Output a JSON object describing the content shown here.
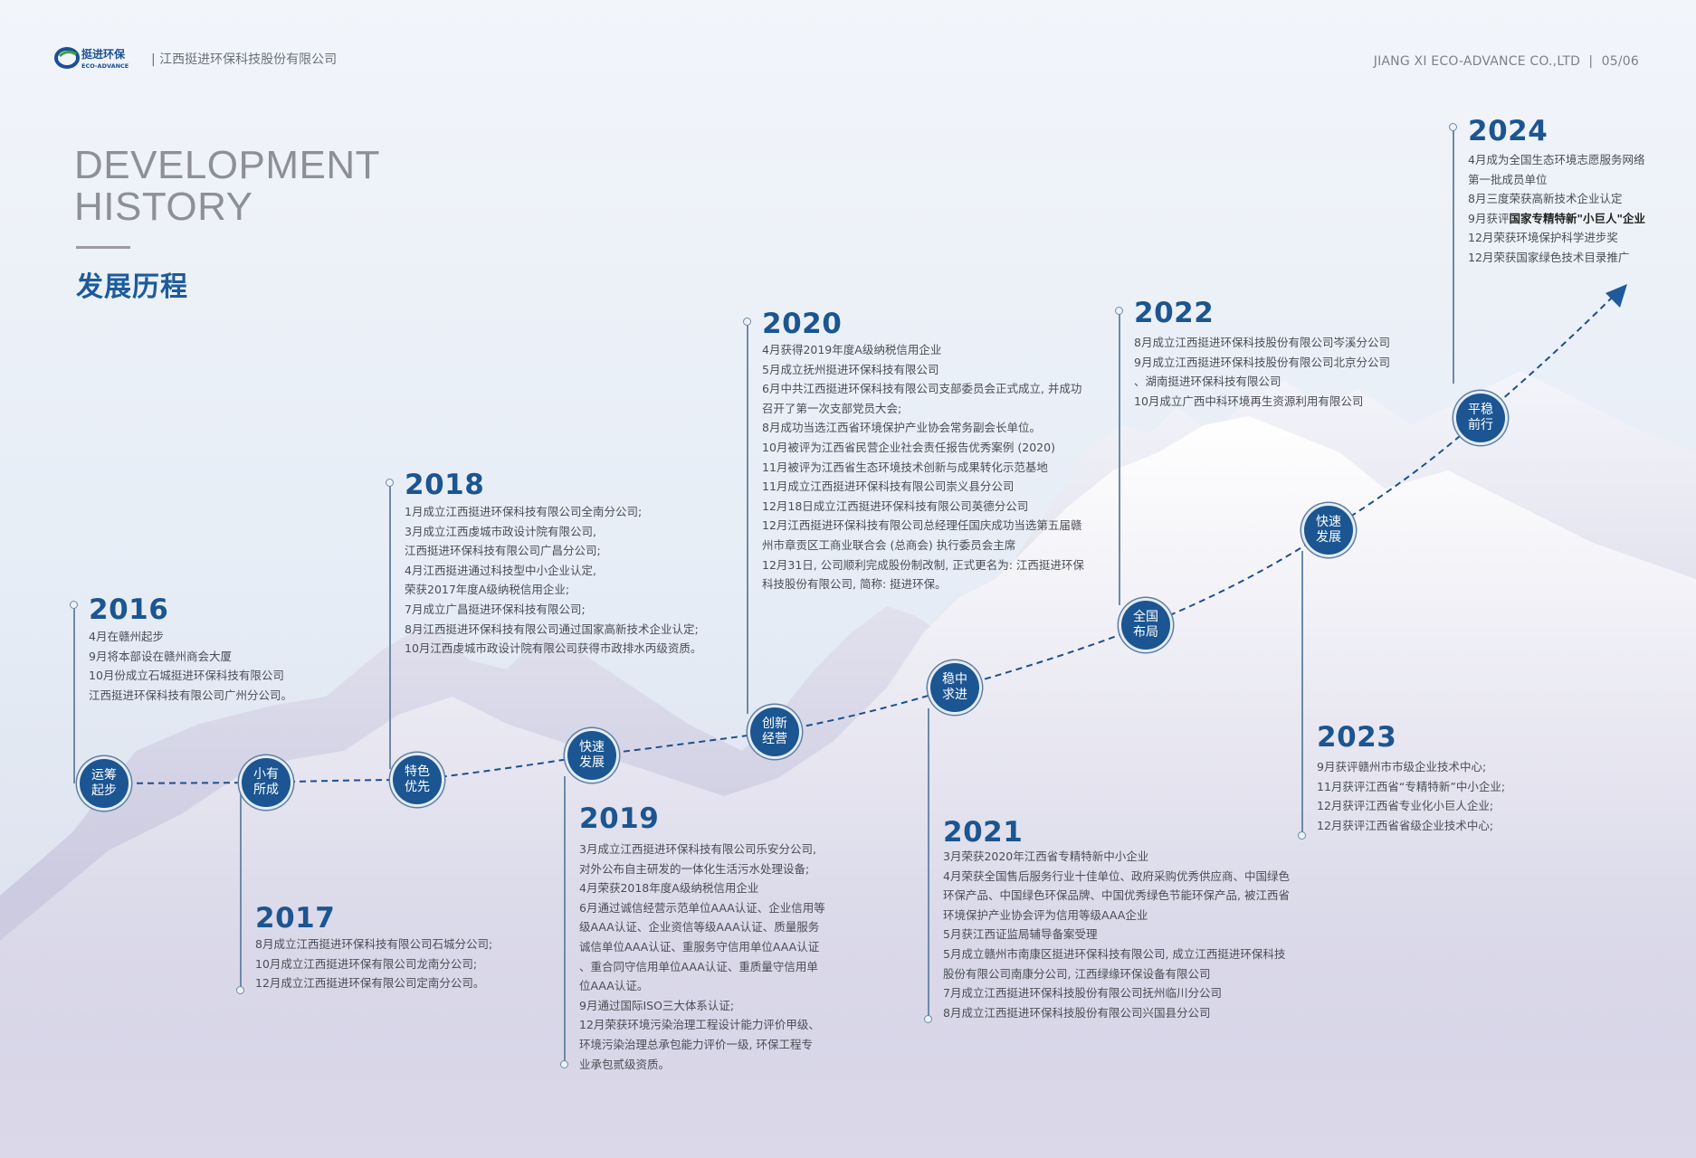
{
  "header": {
    "logo_text": "挺进环保",
    "logo_sub": "ECO-ADVANCE",
    "company_name": "| 江西挺进环保科技股份有限公司",
    "right_text": "JIANG XI ECO-ADVANCE CO.,LTD  |  05/06"
  },
  "title": {
    "en_line1": "DEVELOPMENT",
    "en_line2": "HISTORY",
    "cn": "发展历程"
  },
  "colors": {
    "accent": "#1b5592",
    "year": "#1c5590",
    "line": "#6d8aa8"
  },
  "stages": [
    "运筹起步",
    "小有所成",
    "特色优先",
    "快速发展",
    "创新经营",
    "稳中求进",
    "全国布局",
    "快速发展",
    "平稳前行"
  ],
  "timeline": [
    {
      "year": "2016",
      "lines": [
        "4月在赣州起步",
        "9月将本部设在赣州商会大厦",
        "10月份成立石城挺进环保科技有限公司",
        "江西挺进环保科技有限公司广州分公司。"
      ]
    },
    {
      "year": "2017",
      "lines": [
        "8月成立江西挺进环保科技有限公司石城分公司;",
        "10月成立江西挺进环保有限公司龙南分公司;",
        "12月成立江西挺进环保有限公司定南分公司。"
      ]
    },
    {
      "year": "2018",
      "lines": [
        "1月成立江西挺进环保科技有限公司全南分公司;",
        "3月成立江西虔城市政设计院有限公司,",
        "江西挺进环保科技有限公司广昌分公司;",
        "4月江西挺进通过科技型中小企业认定,",
        "荣获2017年度A级纳税信用企业;",
        "7月成立广昌挺进环保科技有限公司;",
        "8月江西挺进环保科技有限公司通过国家高新技术企业认定;",
        "10月江西虔城市政设计院有限公司获得市政排水丙级资质。"
      ]
    },
    {
      "year": "2019",
      "lines": [
        "3月成立江西挺进环保科技有限公司乐安分公司,",
        "对外公布自主研发的一体化生活污水处理设备;",
        "4月荣获2018年度A级纳税信用企业",
        "6月通过诚信经营示范单位AAA认证、企业信用等",
        "级AAA认证、企业资信等级AAA认证、质量服务",
        "诚信单位AAA认证、重服务守信用单位AAA认证",
        "、重合同守信用单位AAA认证、重质量守信用单",
        "位AAA认证。",
        "9月通过国际ISO三大体系认证;",
        "12月荣获环境污染治理工程设计能力评价甲级、",
        "环境污染治理总承包能力评价一级, 环保工程专",
        "业承包贰级资质。"
      ]
    },
    {
      "year": "2020",
      "lines": [
        "4月获得2019年度A级纳税信用企业",
        "5月成立抚州挺进环保科技有限公司",
        "6月中共江西挺进环保科技有限公司支部委员会正式成立, 并成功",
        "召开了第一次支部党员大会;",
        "8月成功当选江西省环境保护产业协会常务副会长单位。",
        "10月被评为江西省民营企业社会责任报告优秀案例 (2020)",
        "11月被评为江西省生态环境技术创新与成果转化示范基地",
        "11月成立江西挺进环保科技有限公司崇义县分公司",
        "12月18日成立江西挺进环保科技有限公司英德分公司",
        "12月江西挺进环保科技有限公司总经理任国庆成功当选第五届赣",
        "州市章贡区工商业联合会 (总商会) 执行委员会主席",
        "12月31日, 公司顺利完成股份制改制, 正式更名为: 江西挺进环保",
        "科技股份有限公司, 简称: 挺进环保。"
      ]
    },
    {
      "year": "2021",
      "lines": [
        "3月荣获2020年江西省专精特新中小企业",
        "4月荣获全国售后服务行业十佳单位、政府采购优秀供应商、中国绿色",
        "环保产品、中国绿色环保品牌、中国优秀绿色节能环保产品, 被江西省",
        "环境保护产业协会评为信用等级AAA企业",
        "5月获江西证监局辅导备案受理",
        "5月成立赣州市南康区挺进环保科技有限公司, 成立江西挺进环保科技",
        "股份有限公司南康分公司, 江西绿缘环保设备有限公司",
        "7月成立江西挺进环保科技股份有限公司抚州临川分公司",
        "8月成立江西挺进环保科技股份有限公司兴国县分公司"
      ]
    },
    {
      "year": "2022",
      "lines": [
        "8月成立江西挺进环保科技股份有限公司岑溪分公司",
        "9月成立江西挺进环保科技股份有限公司北京分公司",
        "、湖南挺进环保科技有限公司",
        "10月成立广西中科环境再生资源利用有限公司"
      ]
    },
    {
      "year": "2023",
      "lines": [
        "9月获评赣州市市级企业技术中心;",
        "11月获评江西省“专精特新”中小企业;",
        "12月获评江西省专业化小巨人企业;",
        "12月获评江西省省级企业技术中心;"
      ]
    },
    {
      "year": "2024",
      "lines": [
        "4月成为全国生态环境志愿服务网络",
        "第一批成员单位",
        "8月三度荣获高新技术企业认定",
        {
          "text": "9月获评",
          "bold": "国家专精特新\"小巨人\"企业"
        },
        "12月荣获环境保护科学进步奖",
        "12月荣获国家绿色技术目录推广"
      ]
    }
  ]
}
